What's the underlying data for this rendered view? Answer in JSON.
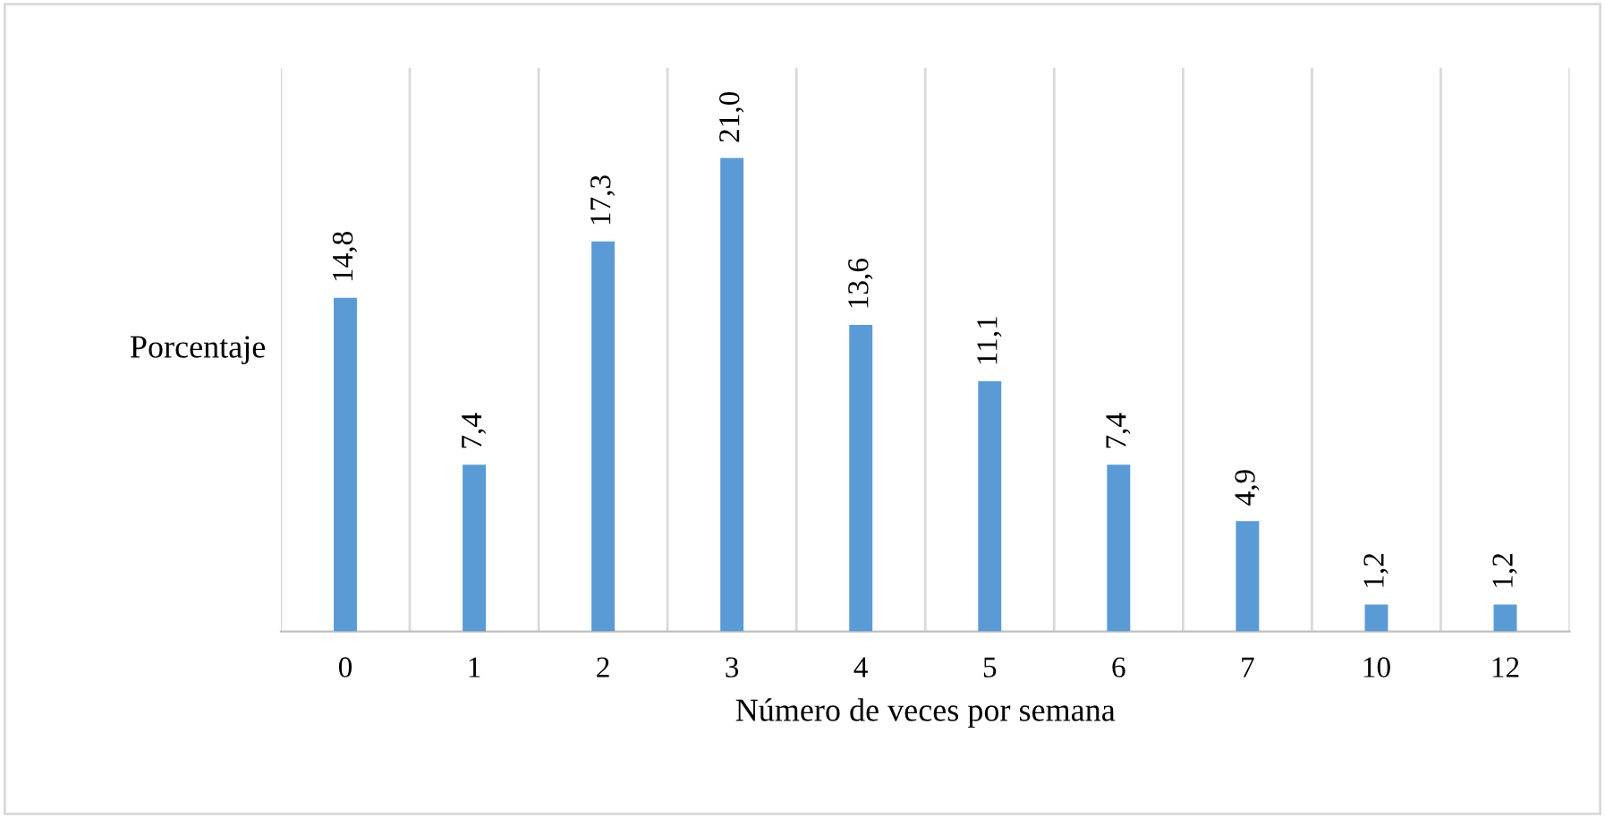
{
  "chart_data": {
    "type": "bar",
    "xlabel": "Número de veces por semana",
    "ylabel": "Porcentaje",
    "categories": [
      "0",
      "1",
      "2",
      "3",
      "4",
      "5",
      "6",
      "7",
      "10",
      "12"
    ],
    "values": [
      14.8,
      7.4,
      17.3,
      21.0,
      13.6,
      11.1,
      7.4,
      4.9,
      1.2,
      1.2
    ],
    "value_labels": [
      "14,8",
      "7,4",
      "17,3",
      "21,0",
      "13,6",
      "11,1",
      "7,4",
      "4,9",
      "1,2",
      "1,2"
    ],
    "color": "#5b9bd5",
    "ylim": [
      0,
      25
    ],
    "grid": "x",
    "tick_labels": "x",
    "legend": false
  }
}
